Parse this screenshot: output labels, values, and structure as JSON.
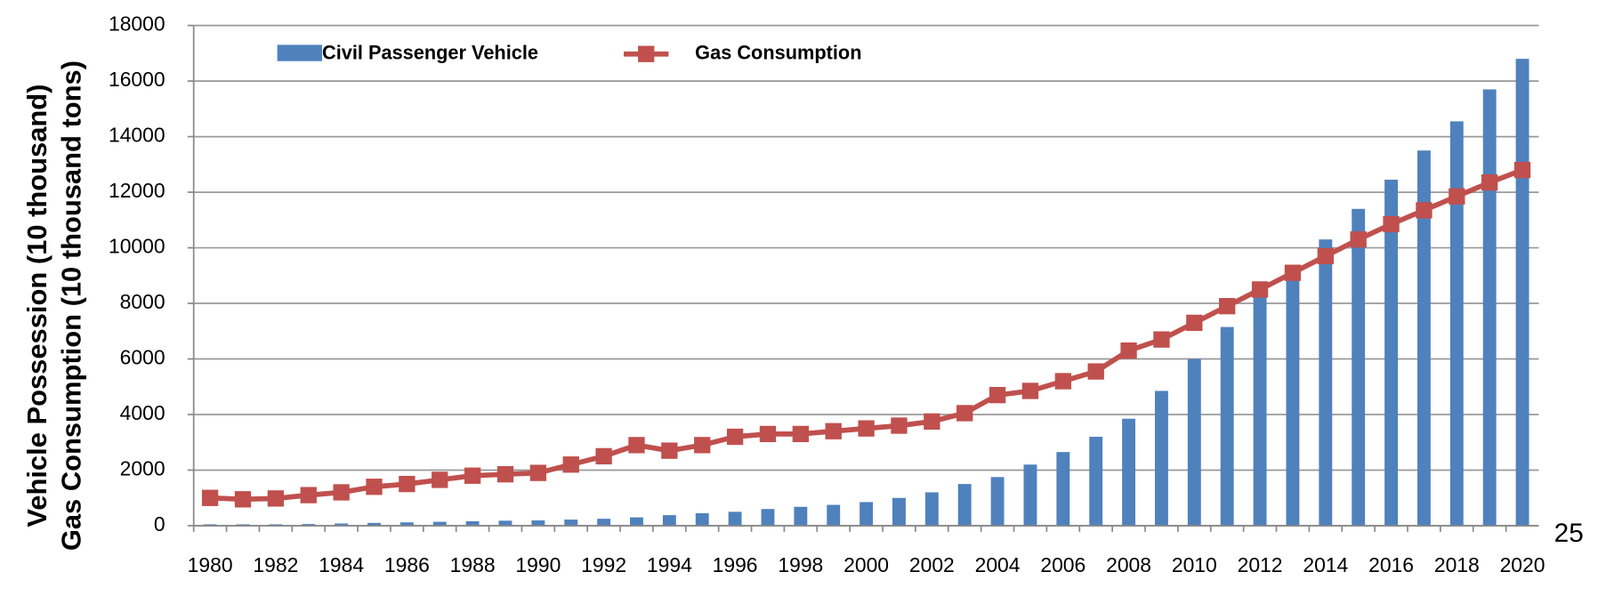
{
  "chart_data": {
    "type": "bar_line",
    "ylabel": [
      "Vehicle Possession (10 thousand)",
      "Gas Consumption (10 thousand tons)"
    ],
    "categories": [
      "1980",
      null,
      "1982",
      null,
      "1984",
      null,
      "1986",
      null,
      "1988",
      null,
      "1990",
      null,
      "1992",
      null,
      "1994",
      null,
      "1996",
      null,
      "1998",
      null,
      "2000",
      null,
      "2002",
      null,
      "2004",
      null,
      "2006",
      null,
      "2008",
      null,
      "2010",
      null,
      "2012",
      null,
      "2014",
      null,
      "2016",
      null,
      "2018",
      null,
      "2020"
    ],
    "series": [
      {
        "name": "Civil Passenger Vehicle",
        "type": "bar",
        "color": "#4f81bd",
        "values": [
          50,
          50,
          50,
          60,
          80,
          100,
          120,
          140,
          160,
          180,
          190,
          220,
          250,
          300,
          380,
          450,
          500,
          600,
          680,
          750,
          850,
          1000,
          1200,
          1500,
          1750,
          2200,
          2650,
          3200,
          3850,
          4850,
          6000,
          7150,
          8300,
          9100,
          10300,
          11400,
          12450,
          13500,
          14550,
          15700,
          16800
        ]
      },
      {
        "name": "Gas Consumption",
        "type": "line",
        "color": "#c0504d",
        "values": [
          1000,
          950,
          980,
          1100,
          1200,
          1400,
          1500,
          1650,
          1800,
          1850,
          1900,
          2200,
          2500,
          2900,
          2700,
          2900,
          3200,
          3300,
          3300,
          3400,
          3500,
          3600,
          3750,
          4050,
          4700,
          4850,
          5200,
          5550,
          6300,
          6700,
          7300,
          7900,
          8500,
          9100,
          9700,
          10300,
          10850,
          11350,
          11850,
          12350,
          12800
        ]
      }
    ],
    "ylim": [
      0,
      18000
    ],
    "yticks": [
      0,
      2000,
      4000,
      6000,
      8000,
      10000,
      12000,
      14000,
      16000,
      18000
    ],
    "grid": true,
    "legend": "top-left",
    "annotations": [
      "25"
    ]
  }
}
